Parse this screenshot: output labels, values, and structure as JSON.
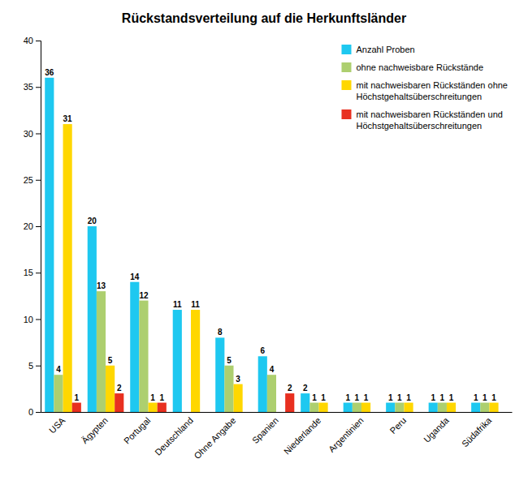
{
  "chart_data": {
    "type": "bar",
    "title": "Rückstandsverteilung auf die Herkunftsländer",
    "categories": [
      "USA",
      "Ägypten",
      "Portugal",
      "Deutschland",
      "Ohne Angabe",
      "Spanien",
      "Niederlande",
      "Argentinien",
      "Peru",
      "Uganda",
      "Südafrika"
    ],
    "series": [
      {
        "name": "Anzahl Proben",
        "color": "#1EC8F0",
        "values": [
          36,
          20,
          14,
          11,
          8,
          6,
          2,
          1,
          1,
          1,
          1
        ]
      },
      {
        "name": "ohne nachweisbare Rückstände",
        "color": "#ADCF6F",
        "values": [
          4,
          13,
          12,
          0,
          5,
          4,
          1,
          1,
          1,
          1,
          1
        ]
      },
      {
        "name": "mit nachweisbaren Rückständen ohne\nHöchstgehaltsüberschreitungen",
        "color": "#FFD700",
        "values": [
          31,
          5,
          1,
          11,
          3,
          0,
          1,
          1,
          1,
          1,
          1
        ]
      },
      {
        "name": "mit nachweisbaren Rückständen und\nHöchstgehaltsüberschreitungen",
        "color": "#E83020",
        "values": [
          1,
          2,
          1,
          0,
          0,
          2,
          0,
          0,
          0,
          0,
          0
        ]
      }
    ],
    "ylim": [
      0,
      40
    ],
    "yticks": [
      0,
      5,
      10,
      15,
      20,
      25,
      30,
      35,
      40
    ],
    "grid": false,
    "legend": "top-right",
    "data_labels": true
  }
}
